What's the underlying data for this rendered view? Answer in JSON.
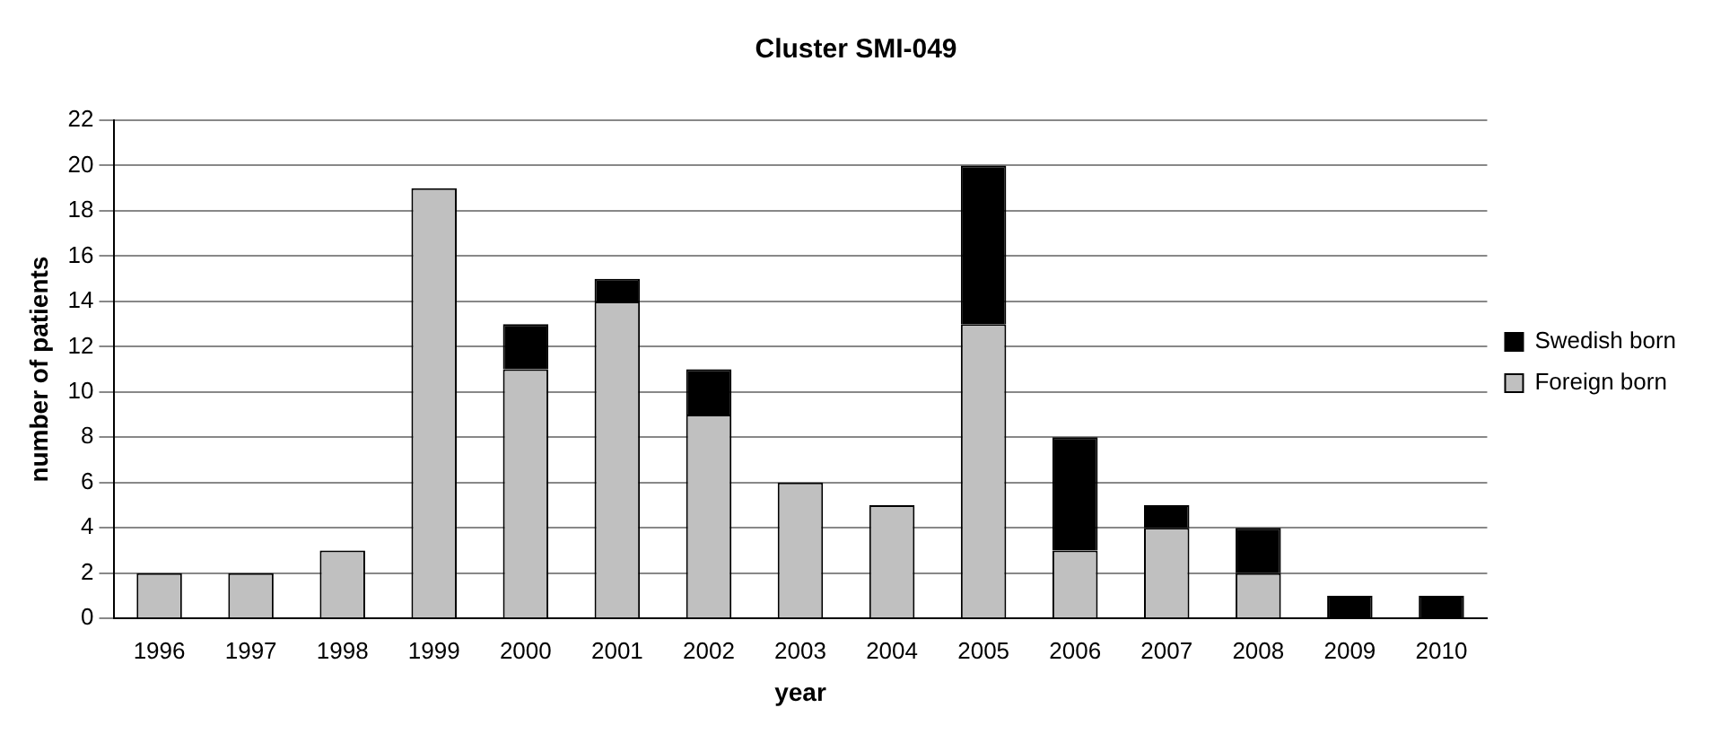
{
  "chart_data": {
    "type": "bar",
    "title": "Cluster SMI-049",
    "xlabel": "year",
    "ylabel": "number of patients",
    "categories": [
      "1996",
      "1997",
      "1998",
      "1999",
      "2000",
      "2001",
      "2002",
      "2003",
      "2004",
      "2005",
      "2006",
      "2007",
      "2008",
      "2009",
      "2010"
    ],
    "stacked": true,
    "series": [
      {
        "name": "Foreign born",
        "color": "#c0c0c0",
        "values": [
          2,
          2,
          3,
          19,
          11,
          14,
          9,
          6,
          5,
          13,
          3,
          4,
          2,
          0,
          0
        ]
      },
      {
        "name": "Swedish born",
        "color": "#000000",
        "values": [
          0,
          0,
          0,
          0,
          2,
          1,
          2,
          0,
          0,
          7,
          5,
          1,
          2,
          1,
          1
        ]
      }
    ],
    "ylim": [
      0,
      22
    ],
    "yticks": [
      0,
      2,
      4,
      6,
      8,
      10,
      12,
      14,
      16,
      18,
      20,
      22
    ],
    "grid": "y",
    "legend": "right"
  }
}
